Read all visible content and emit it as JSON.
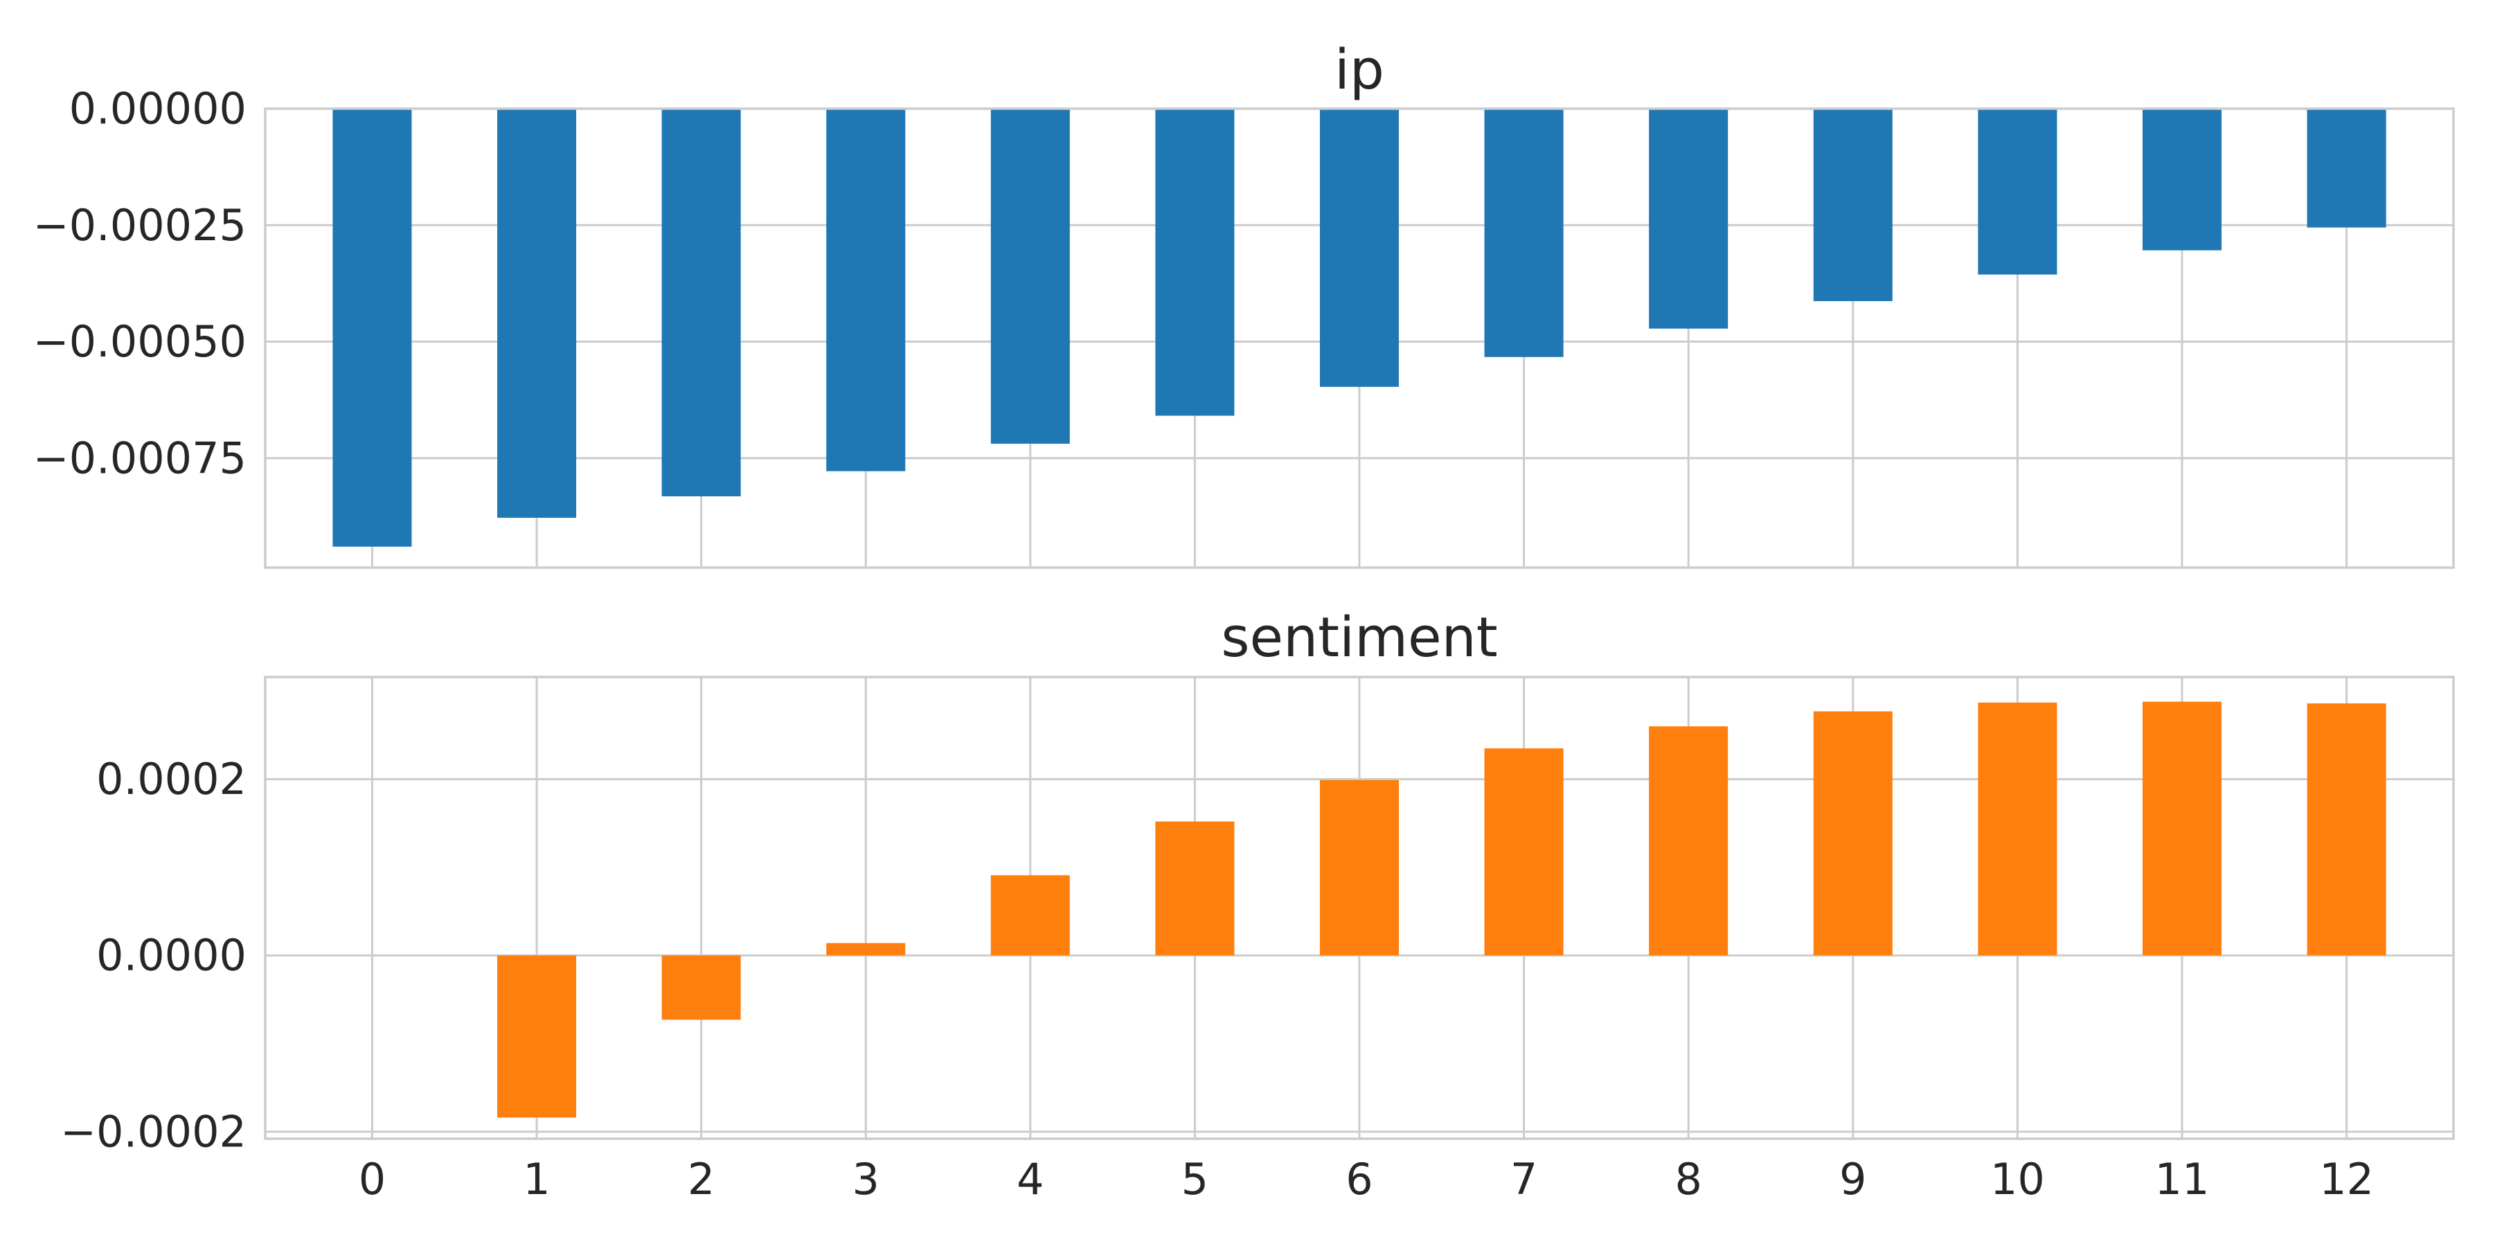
{
  "chart_data": [
    {
      "type": "bar",
      "title": "ip",
      "categories": [
        "0",
        "1",
        "2",
        "3",
        "4",
        "5",
        "6",
        "7",
        "8",
        "9",
        "10",
        "11",
        "12"
      ],
      "series": [
        {
          "values": [
            -0.00094,
            -0.000878,
            -0.000832,
            -0.000778,
            -0.000719,
            -0.000659,
            -0.000597,
            -0.000533,
            -0.000472,
            -0.000413,
            -0.000356,
            -0.000304,
            -0.000255
          ]
        }
      ],
      "color": "#1f77b4",
      "ylim": [
        -0.000985,
        0.0
      ],
      "yticks": [
        0.0,
        -0.00025,
        -0.0005,
        -0.00075
      ],
      "ytick_labels": [
        "0.00000",
        "−0.00025",
        "−0.00050",
        "−0.00075"
      ],
      "show_xtick_labels": false,
      "grid": true,
      "xlabel": "",
      "ylabel": ""
    },
    {
      "type": "bar",
      "title": "sentiment",
      "categories": [
        "0",
        "1",
        "2",
        "3",
        "4",
        "5",
        "6",
        "7",
        "8",
        "9",
        "10",
        "11",
        "12"
      ],
      "series": [
        {
          "values": [
            0.0,
            -0.000184,
            -7.3e-05,
            1.4e-05,
            9.1e-05,
            0.000152,
            0.000199,
            0.000235,
            0.00026,
            0.000277,
            0.000287,
            0.000288,
            0.000286
          ]
        }
      ],
      "color": "#ff7f0e",
      "ylim": [
        -0.000208,
        0.000316
      ],
      "yticks": [
        0.0002,
        0.0,
        -0.0002
      ],
      "ytick_labels": [
        "0.0002",
        "0.0000",
        "−0.0002"
      ],
      "show_xtick_labels": true,
      "grid": true,
      "xlabel": "",
      "ylabel": ""
    }
  ]
}
